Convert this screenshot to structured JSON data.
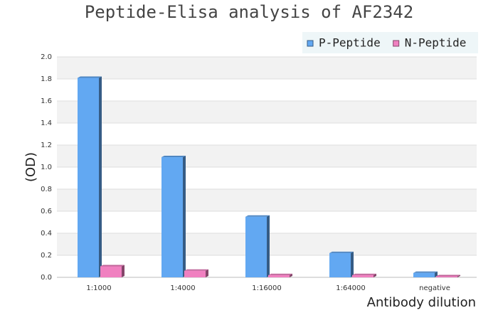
{
  "chart_data": {
    "type": "bar",
    "title": "Peptide-Elisa analysis of AF2342",
    "ylabel": "(OD)",
    "xlabel": "Antibody dilution",
    "categories": [
      "1:1000",
      "1:4000",
      "1:16000",
      "1:64000",
      "negative"
    ],
    "series": [
      {
        "name": "P-Peptide",
        "color": "#62a8f2",
        "values": [
          1.81,
          1.09,
          0.55,
          0.22,
          0.04
        ]
      },
      {
        "name": "N-Peptide",
        "color": "#f080c0",
        "values": [
          0.1,
          0.06,
          0.02,
          0.02,
          0.01
        ]
      }
    ],
    "ylim": [
      0,
      2
    ],
    "yticks": [
      {
        "value": 0,
        "label": "0.0"
      },
      0.2,
      0.4,
      0.6,
      0.8,
      {
        "value": 1,
        "label": "1.0"
      },
      1.2,
      1.4,
      1.6,
      1.8,
      {
        "value": 2,
        "label": "2.0"
      }
    ],
    "grid": true,
    "legend": "top-right"
  }
}
